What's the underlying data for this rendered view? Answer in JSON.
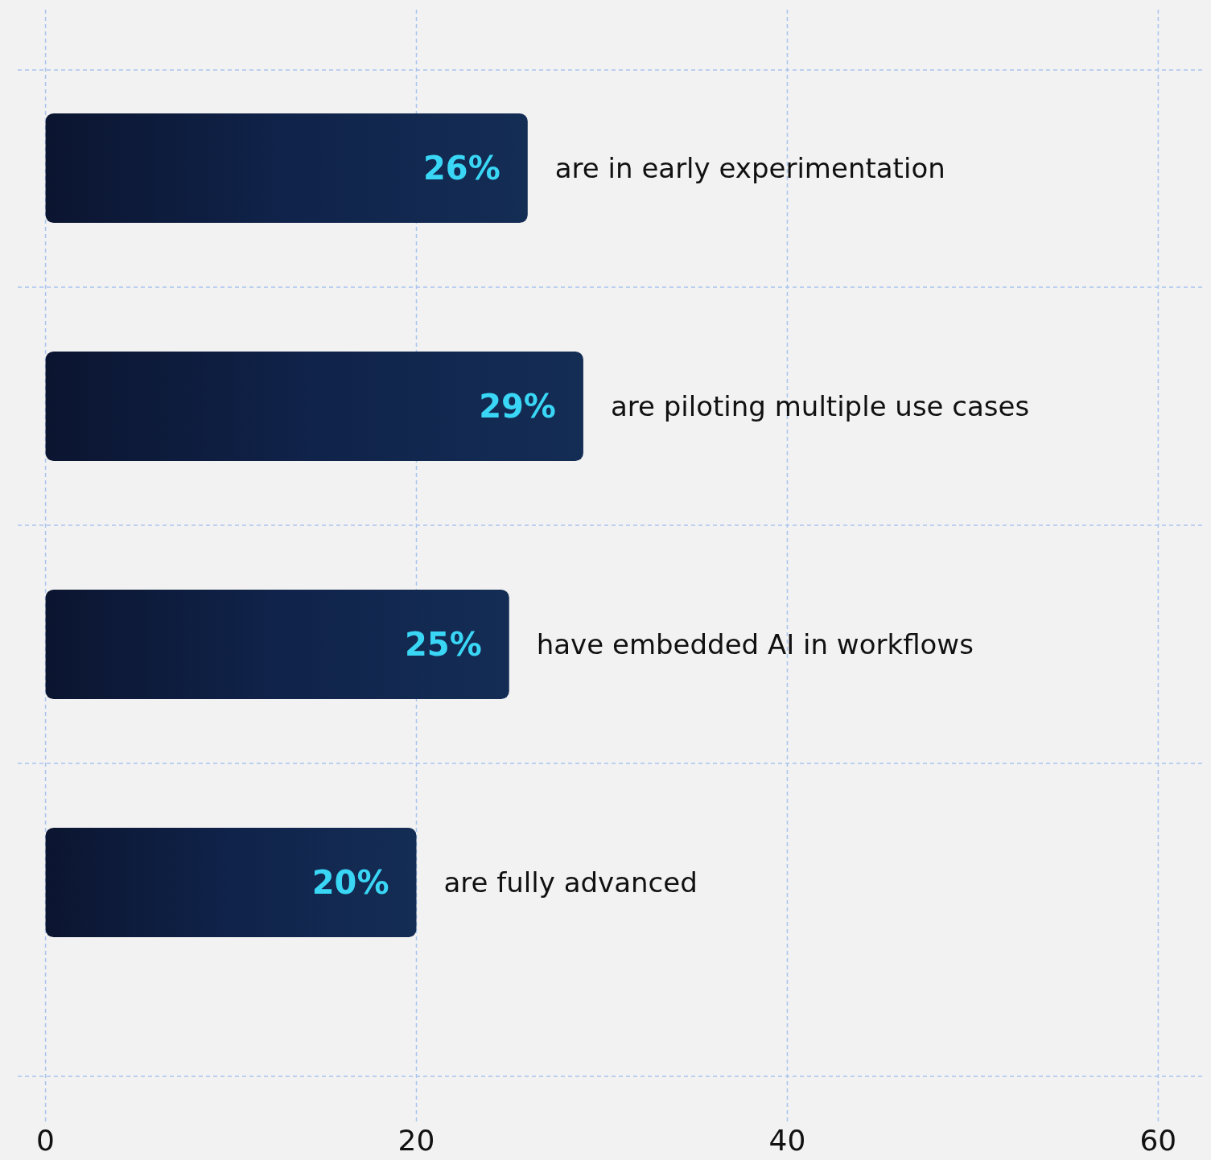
{
  "chart_data": {
    "type": "bar",
    "orientation": "horizontal",
    "categories": [
      "are in early experimentation",
      "are piloting multiple use cases",
      "have embedded AI in workflows",
      "are fully advanced"
    ],
    "values": [
      26,
      29,
      25,
      20
    ],
    "value_labels": [
      "26%",
      "29%",
      "25%",
      "20%"
    ],
    "color": "#10234a",
    "xlim": [
      -1.5,
      62.5
    ],
    "xticks": [
      0,
      20,
      40,
      60
    ],
    "grid": true
  }
}
